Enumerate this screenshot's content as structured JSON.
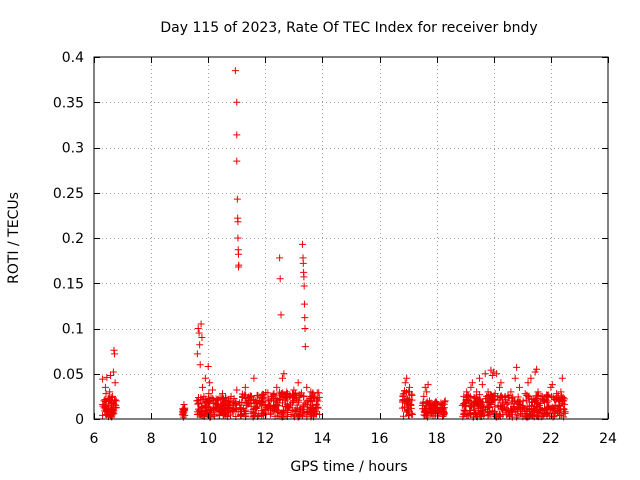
{
  "chart_data": {
    "type": "scatter",
    "title": "Day 115 of 2023, Rate Of TEC Index for receiver bndy",
    "xlabel": "GPS time / hours",
    "ylabel": "ROTI / TECUs",
    "xlim": [
      6,
      24
    ],
    "ylim": [
      0,
      0.4
    ],
    "xticks": [
      6,
      8,
      10,
      12,
      14,
      16,
      18,
      20,
      22,
      24
    ],
    "xtick_labels": [
      "6",
      "8",
      "10",
      "12",
      "14",
      "16",
      "18",
      "20",
      "22",
      "24"
    ],
    "yticks": [
      0,
      0.05,
      0.1,
      0.15,
      0.2,
      0.25,
      0.3,
      0.35,
      0.4
    ],
    "ytick_labels": [
      "0",
      "0.05",
      "0.1",
      "0.15",
      "0.2",
      "0.25",
      "0.3",
      "0.35",
      "0.4"
    ],
    "grid": true,
    "marker": "+",
    "color": "#ee0000",
    "series": [
      {
        "name": "ROTI",
        "points": [
          [
            6.3,
            0.044
          ],
          [
            6.35,
            0.02
          ],
          [
            6.4,
            0.012
          ],
          [
            6.42,
            0.028
          ],
          [
            6.45,
            0.046
          ],
          [
            6.48,
            0.008
          ],
          [
            6.5,
            0.022
          ],
          [
            6.52,
            0.015
          ],
          [
            6.55,
            0.03
          ],
          [
            6.58,
            0.048
          ],
          [
            6.6,
            0.01
          ],
          [
            6.62,
            0.018
          ],
          [
            6.65,
            0.025
          ],
          [
            6.68,
            0.052
          ],
          [
            6.7,
            0.076
          ],
          [
            6.72,
            0.072
          ],
          [
            6.74,
            0.04
          ],
          [
            6.76,
            0.015
          ],
          [
            6.3,
            0.004
          ],
          [
            6.45,
            0.005
          ],
          [
            6.6,
            0.003
          ],
          [
            6.78,
            0.02
          ],
          [
            6.4,
            0.035
          ],
          [
            6.55,
            0.005
          ],
          [
            9.1,
            0.008
          ],
          [
            9.15,
            0.016
          ],
          [
            9.18,
            0.004
          ],
          [
            9.6,
            0.02
          ],
          [
            9.65,
            0.1
          ],
          [
            9.68,
            0.095
          ],
          [
            9.7,
            0.082
          ],
          [
            9.72,
            0.06
          ],
          [
            9.75,
            0.105
          ],
          [
            9.78,
            0.09
          ],
          [
            9.8,
            0.035
          ],
          [
            9.82,
            0.012
          ],
          [
            9.85,
            0.025
          ],
          [
            9.88,
            0.008
          ],
          [
            9.9,
            0.045
          ],
          [
            9.95,
            0.015
          ],
          [
            10.0,
            0.058
          ],
          [
            10.02,
            0.028
          ],
          [
            10.05,
            0.04
          ],
          [
            10.08,
            0.01
          ],
          [
            10.1,
            0.02
          ],
          [
            10.15,
            0.032
          ],
          [
            10.2,
            0.005
          ],
          [
            10.25,
            0.018
          ],
          [
            10.3,
            0.012
          ],
          [
            10.35,
            0.022
          ],
          [
            10.4,
            0.008
          ],
          [
            10.45,
            0.015
          ],
          [
            10.5,
            0.028
          ],
          [
            10.55,
            0.006
          ],
          [
            10.6,
            0.02
          ],
          [
            9.62,
            0.072
          ],
          [
            9.7,
            0.005
          ],
          [
            10.7,
            0.012
          ],
          [
            10.8,
            0.025
          ],
          [
            10.85,
            0.01
          ],
          [
            10.9,
            0.015
          ],
          [
            10.95,
            0.385
          ],
          [
            11.0,
            0.35
          ],
          [
            11.0,
            0.314
          ],
          [
            11.0,
            0.285
          ],
          [
            11.02,
            0.243
          ],
          [
            11.03,
            0.222
          ],
          [
            11.04,
            0.2
          ],
          [
            11.05,
            0.187
          ],
          [
            11.06,
            0.182
          ],
          [
            11.07,
            0.17
          ],
          [
            11.04,
            0.218
          ],
          [
            11.06,
            0.168
          ],
          [
            11.0,
            0.032
          ],
          [
            11.05,
            0.008
          ],
          [
            11.1,
            0.018
          ],
          [
            11.15,
            0.012
          ],
          [
            11.2,
            0.025
          ],
          [
            11.25,
            0.006
          ],
          [
            11.3,
            0.035
          ],
          [
            11.35,
            0.015
          ],
          [
            11.4,
            0.02
          ],
          [
            11.5,
            0.008
          ],
          [
            11.6,
            0.045
          ],
          [
            11.7,
            0.012
          ],
          [
            11.8,
            0.02
          ],
          [
            11.9,
            0.006
          ],
          [
            12.0,
            0.016
          ],
          [
            12.1,
            0.022
          ],
          [
            12.2,
            0.01
          ],
          [
            12.3,
            0.028
          ],
          [
            12.35,
            0.015
          ],
          [
            12.4,
            0.035
          ],
          [
            12.5,
            0.178
          ],
          [
            12.52,
            0.155
          ],
          [
            12.55,
            0.115
          ],
          [
            12.6,
            0.045
          ],
          [
            12.62,
            0.025
          ],
          [
            12.65,
            0.05
          ],
          [
            12.7,
            0.02
          ],
          [
            12.75,
            0.03
          ],
          [
            12.8,
            0.012
          ],
          [
            12.85,
            0.025
          ],
          [
            12.9,
            0.005
          ],
          [
            12.95,
            0.018
          ],
          [
            13.0,
            0.032
          ],
          [
            13.05,
            0.01
          ],
          [
            13.1,
            0.022
          ],
          [
            13.15,
            0.04
          ],
          [
            13.3,
            0.193
          ],
          [
            13.32,
            0.178
          ],
          [
            13.33,
            0.172
          ],
          [
            13.34,
            0.162
          ],
          [
            13.35,
            0.157
          ],
          [
            13.36,
            0.147
          ],
          [
            13.37,
            0.127
          ],
          [
            13.38,
            0.112
          ],
          [
            13.39,
            0.1
          ],
          [
            13.4,
            0.08
          ],
          [
            13.45,
            0.035
          ],
          [
            13.5,
            0.02
          ],
          [
            13.55,
            0.01
          ],
          [
            13.6,
            0.025
          ],
          [
            13.65,
            0.015
          ],
          [
            13.7,
            0.008
          ],
          [
            13.8,
            0.02
          ],
          [
            13.85,
            0.012
          ],
          [
            13.9,
            0.005
          ],
          [
            16.8,
            0.012
          ],
          [
            16.85,
            0.028
          ],
          [
            16.9,
            0.04
          ],
          [
            16.92,
            0.02
          ],
          [
            16.95,
            0.045
          ],
          [
            17.0,
            0.008
          ],
          [
            17.02,
            0.03
          ],
          [
            17.05,
            0.035
          ],
          [
            17.1,
            0.015
          ],
          [
            17.15,
            0.005
          ],
          [
            17.5,
            0.015
          ],
          [
            17.55,
            0.025
          ],
          [
            17.6,
            0.035
          ],
          [
            17.62,
            0.01
          ],
          [
            17.65,
            0.03
          ],
          [
            17.7,
            0.038
          ],
          [
            17.75,
            0.02
          ],
          [
            17.8,
            0.008
          ],
          [
            17.9,
            0.012
          ],
          [
            18.0,
            0.018
          ],
          [
            18.1,
            0.01
          ],
          [
            18.2,
            0.015
          ],
          [
            18.25,
            0.005
          ],
          [
            18.3,
            0.02
          ],
          [
            18.9,
            0.015
          ],
          [
            18.95,
            0.025
          ],
          [
            19.0,
            0.008
          ],
          [
            19.05,
            0.03
          ],
          [
            19.1,
            0.02
          ],
          [
            19.2,
            0.035
          ],
          [
            19.25,
            0.04
          ],
          [
            19.3,
            0.01
          ],
          [
            19.4,
            0.03
          ],
          [
            19.45,
            0.022
          ],
          [
            19.5,
            0.045
          ],
          [
            19.55,
            0.015
          ],
          [
            19.6,
            0.038
          ],
          [
            19.7,
            0.05
          ],
          [
            19.75,
            0.025
          ],
          [
            19.8,
            0.03
          ],
          [
            19.85,
            0.02
          ],
          [
            19.9,
            0.054
          ],
          [
            19.95,
            0.048
          ],
          [
            20.0,
            0.052
          ],
          [
            20.05,
            0.028
          ],
          [
            20.1,
            0.05
          ],
          [
            20.15,
            0.015
          ],
          [
            20.2,
            0.035
          ],
          [
            20.25,
            0.04
          ],
          [
            20.3,
            0.01
          ],
          [
            20.4,
            0.025
          ],
          [
            20.5,
            0.018
          ],
          [
            20.6,
            0.03
          ],
          [
            20.7,
            0.012
          ],
          [
            20.75,
            0.045
          ],
          [
            20.8,
            0.057
          ],
          [
            20.85,
            0.02
          ],
          [
            20.9,
            0.035
          ],
          [
            21.0,
            0.015
          ],
          [
            21.1,
            0.028
          ],
          [
            21.2,
            0.04
          ],
          [
            21.25,
            0.01
          ],
          [
            21.3,
            0.045
          ],
          [
            21.4,
            0.022
          ],
          [
            21.45,
            0.052
          ],
          [
            21.5,
            0.055
          ],
          [
            21.55,
            0.03
          ],
          [
            21.6,
            0.015
          ],
          [
            21.7,
            0.025
          ],
          [
            21.8,
            0.01
          ],
          [
            21.9,
            0.02
          ],
          [
            22.0,
            0.035
          ],
          [
            22.05,
            0.038
          ],
          [
            22.1,
            0.012
          ],
          [
            22.2,
            0.028
          ],
          [
            22.3,
            0.015
          ],
          [
            22.35,
            0.03
          ],
          [
            22.4,
            0.045
          ],
          [
            22.45,
            0.02
          ],
          [
            22.5,
            0.008
          ],
          [
            18.95,
            0.005
          ],
          [
            19.35,
            0.006
          ],
          [
            19.65,
            0.004
          ],
          [
            20.45,
            0.005
          ],
          [
            20.95,
            0.006
          ],
          [
            21.35,
            0.004
          ],
          [
            21.75,
            0.005
          ],
          [
            22.15,
            0.006
          ]
        ]
      }
    ]
  }
}
